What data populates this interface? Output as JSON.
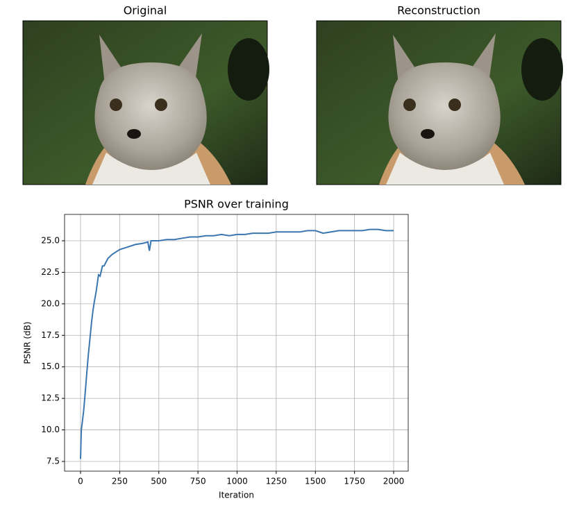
{
  "chart_data": [
    {
      "type": "image",
      "title": "Original"
    },
    {
      "type": "image",
      "title": "Reconstruction"
    },
    {
      "type": "line",
      "title": "PSNR over training",
      "xlabel": "Iteration",
      "ylabel": "PSNR (dB)",
      "x": [
        0,
        5,
        10,
        20,
        30,
        40,
        50,
        60,
        70,
        80,
        90,
        100,
        115,
        125,
        140,
        150,
        175,
        200,
        225,
        250,
        300,
        350,
        400,
        430,
        440,
        450,
        500,
        550,
        600,
        650,
        700,
        750,
        800,
        850,
        900,
        950,
        1000,
        1050,
        1100,
        1150,
        1200,
        1250,
        1300,
        1350,
        1400,
        1450,
        1500,
        1550,
        1600,
        1650,
        1700,
        1750,
        1800,
        1850,
        1900,
        1950,
        2000
      ],
      "values": [
        7.7,
        10,
        10.5,
        11.5,
        13,
        14.5,
        16,
        17.2,
        18.5,
        19.5,
        20.3,
        21,
        22.3,
        22.2,
        23,
        23,
        23.6,
        23.9,
        24.1,
        24.3,
        24.5,
        24.7,
        24.8,
        24.9,
        24.2,
        25,
        25,
        25.1,
        25.1,
        25.2,
        25.3,
        25.3,
        25.4,
        25.4,
        25.5,
        25.4,
        25.5,
        25.5,
        25.6,
        25.6,
        25.6,
        25.7,
        25.7,
        25.7,
        25.7,
        25.8,
        25.8,
        25.6,
        25.7,
        25.8,
        25.8,
        25.8,
        25.8,
        25.9,
        25.9,
        25.8,
        25.8
      ],
      "color": "#3a76af",
      "xlim": [
        -102,
        2093
      ],
      "ylim": [
        6.73,
        27.09
      ],
      "xticks": [
        0,
        250,
        500,
        750,
        1000,
        1250,
        1500,
        1750,
        2000
      ],
      "yticks": [
        7.5,
        {
          "value": 10,
          "label": "10.0"
        },
        12.5,
        {
          "value": 15,
          "label": "15.0"
        },
        17.5,
        {
          "value": 20,
          "label": "20.0"
        },
        22.5,
        {
          "value": 25,
          "label": "25.0"
        }
      ],
      "grid": true
    }
  ]
}
